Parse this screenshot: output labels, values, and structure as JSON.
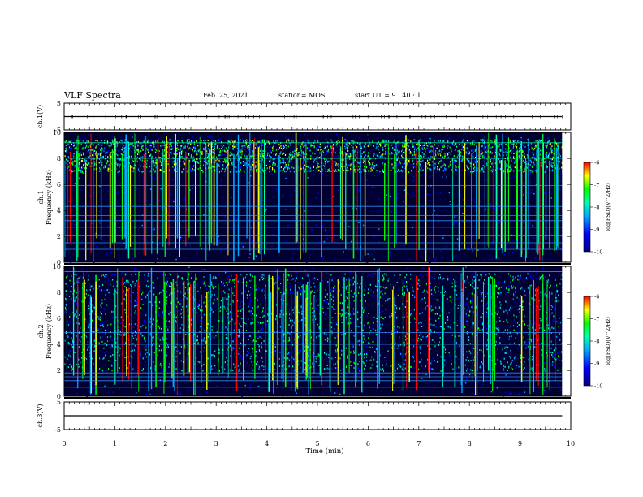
{
  "header": {
    "title": "VLF Spectra",
    "date": "Feb. 25, 2021",
    "station": "station= MOS",
    "start": "start  UT =   9 : 40 : 1"
  },
  "chart_data": [
    {
      "type": "line",
      "panel": "ch1-voltage",
      "ylabel": "ch.1(V)",
      "ylim": [
        -5,
        5
      ],
      "yticks": [
        "5",
        "-5"
      ],
      "series": [
        {
          "values": [
            [
              0,
              0
            ],
            [
              9.83,
              0
            ]
          ]
        }
      ]
    },
    {
      "type": "heatmap",
      "panel": "ch1-spectrogram",
      "ylabel": "ch.1 Frequency (kHz)",
      "ylim": [
        0,
        10
      ],
      "yticks": [
        "0",
        "2",
        "4",
        "6",
        "8",
        "10"
      ],
      "xlim": [
        0,
        9.83
      ],
      "colorbar": {
        "label": "log(PSD)(V^2/Hz)",
        "range": [
          -10,
          -6
        ],
        "ticks": [
          "-6",
          "-7",
          "-8",
          "-9",
          "-10"
        ]
      },
      "bands_khz": [
        0.4,
        1.0,
        1.5,
        2.1,
        2.7,
        3.2,
        3.6,
        4.3,
        5.9,
        8.0,
        9.2
      ],
      "emission_band_khz": [
        7.0,
        9.5
      ]
    },
    {
      "type": "heatmap",
      "panel": "ch2-spectrogram",
      "ylabel": "ch.2 Frequency (kHz)",
      "ylim": [
        0,
        10
      ],
      "yticks": [
        "0",
        "2",
        "4",
        "6",
        "8",
        "10"
      ],
      "xlim": [
        0,
        9.83
      ],
      "colorbar": {
        "label": "log(PSD)(V^2/Hz)",
        "range": [
          -10,
          -6
        ],
        "ticks": [
          "-6",
          "-7",
          "-8",
          "-9",
          "-10"
        ]
      },
      "bands_khz": [
        0.7,
        1.2,
        1.5,
        1.8,
        4.0,
        4.9,
        9.6
      ],
      "emission_band_khz": [
        2.0,
        9.5
      ]
    },
    {
      "type": "line",
      "panel": "ch3-voltage",
      "ylabel": "ch.3(V)",
      "ylim": [
        -5,
        5
      ],
      "yticks": [
        "5",
        "-5"
      ],
      "series": [
        {
          "values": [
            [
              0,
              0
            ],
            [
              9.83,
              0
            ]
          ]
        }
      ]
    }
  ],
  "xaxis": {
    "label": "Time (min)",
    "ticks": [
      "0",
      "1",
      "2",
      "3",
      "4",
      "5",
      "6",
      "7",
      "8",
      "9",
      "10"
    ],
    "range": [
      0,
      10
    ]
  },
  "colors": {
    "background": "#000033",
    "cmap": [
      "#00008b",
      "#0000ff",
      "#00aaff",
      "#00ffaa",
      "#00ff00",
      "#ffff00",
      "#ff0000"
    ]
  }
}
